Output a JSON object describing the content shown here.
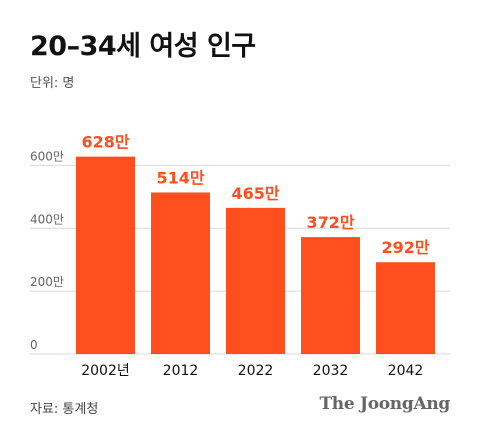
{
  "header": {
    "title": "20–34세 여성 인구",
    "unit": "단위: 명"
  },
  "footer": {
    "source": "자료: 통계청",
    "brand": "The JoongAng"
  },
  "colors": {
    "bar": "#ff4f1f",
    "label": "#ff4f1f",
    "grid": "#d9d9d9",
    "tick": "#666666"
  },
  "chart_data": {
    "type": "bar",
    "title": "20–34세 여성 인구",
    "categories": [
      "2002년",
      "2012",
      "2022",
      "2032",
      "2042"
    ],
    "values": [
      628,
      514,
      465,
      372,
      292
    ],
    "data_labels": [
      "628만",
      "514만",
      "465만",
      "372만",
      "292만"
    ],
    "y_ticks": [
      0,
      200,
      400,
      600
    ],
    "y_tick_labels": [
      "0",
      "200만",
      "400만",
      "600만"
    ],
    "ylim": [
      0,
      700
    ],
    "xlabel": "",
    "ylabel": "",
    "grid": true
  }
}
